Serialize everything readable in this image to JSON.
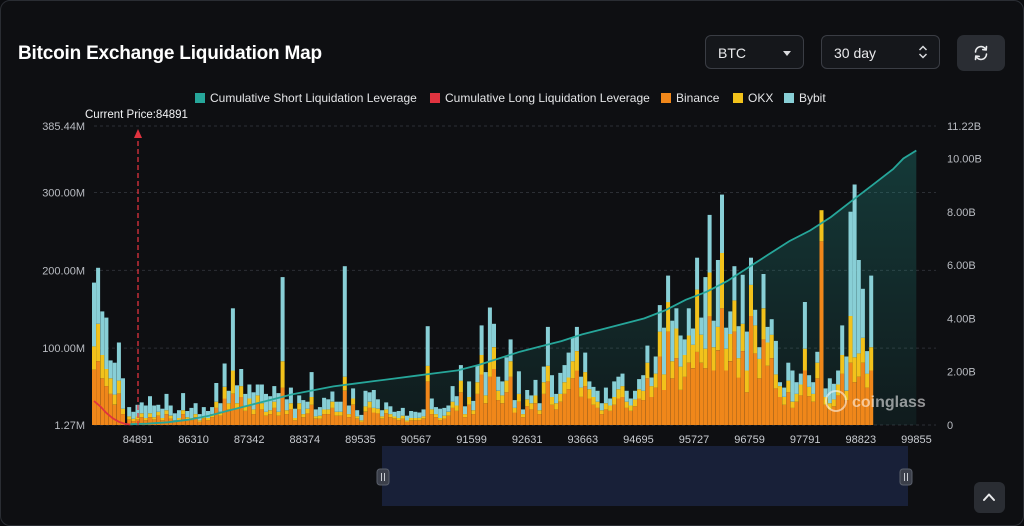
{
  "title": "Bitcoin Exchange Liquidation Map",
  "controls": {
    "coin": "BTC",
    "period": "30 day",
    "refresh_icon": "refresh-icon",
    "scroll_top_icon": "chevron-up-icon"
  },
  "watermark": "coinglass",
  "colors": {
    "short_cum": "#26a69a",
    "long_cum": "#e0333f",
    "binance": "#f0871a",
    "okx": "#f2c21b",
    "bybit": "#88cfd6",
    "current_price": "#e0333f"
  },
  "chart_data": {
    "type": "bar",
    "title": "Bitcoin Exchange Liquidation Map",
    "stacked": true,
    "legend_position": "top-center",
    "current_price": {
      "label": "Current Price:84891",
      "value": 84891
    },
    "x_tick_labels": [
      "84891",
      "86310",
      "87342",
      "88374",
      "89535",
      "90567",
      "91599",
      "92631",
      "93663",
      "94695",
      "95727",
      "96759",
      "97791",
      "98823",
      "99855"
    ],
    "y_left_ticks": [
      "1.27M",
      "100.00M",
      "200.00M",
      "300.00M",
      "385.44M"
    ],
    "y_right_ticks": [
      "0",
      "2.00B",
      "4.00B",
      "6.00B",
      "8.00B",
      "10.00B",
      "11.22B"
    ],
    "ylim_left": [
      1.27,
      385.44
    ],
    "ylim_right": [
      0,
      11.22
    ],
    "y_left_unit": "M",
    "y_right_unit": "B",
    "x_range": [
      84180,
      100430
    ],
    "legend": [
      "Cumulative Short Liquidation Leverage",
      "Cumulative Long Liquidation Leverage",
      "Binance",
      "OKX",
      "Bybit"
    ],
    "bar_series": [
      {
        "name": "Binance",
        "color": "#f0871a"
      },
      {
        "name": "OKX",
        "color": "#f2c21b"
      },
      {
        "name": "Bybit",
        "color": "#88cfd6"
      }
    ],
    "bars": [
      [
        84180,
        71,
        30,
        82
      ],
      [
        84260,
        82,
        48,
        72
      ],
      [
        84340,
        60,
        30,
        56
      ],
      [
        84420,
        50,
        22,
        66
      ],
      [
        84500,
        40,
        20,
        23
      ],
      [
        84580,
        26,
        13,
        41
      ],
      [
        84660,
        40,
        17,
        49
      ],
      [
        84740,
        14,
        7,
        39
      ],
      [
        84860,
        7,
        4,
        12
      ],
      [
        84940,
        5,
        3,
        9
      ],
      [
        85020,
        7,
        4,
        15
      ],
      [
        85100,
        10,
        5,
        14
      ],
      [
        85180,
        6,
        3,
        16
      ],
      [
        85260,
        10,
        5,
        22
      ],
      [
        85340,
        7,
        3,
        15
      ],
      [
        85420,
        12,
        5,
        9
      ],
      [
        85500,
        6,
        3,
        12
      ],
      [
        85580,
        14,
        5,
        21
      ],
      [
        85660,
        8,
        4,
        13
      ],
      [
        85740,
        4,
        2,
        9
      ],
      [
        85820,
        6,
        3,
        10
      ],
      [
        85900,
        14,
        5,
        22
      ],
      [
        85980,
        7,
        3,
        8
      ],
      [
        86060,
        6,
        3,
        13
      ],
      [
        86140,
        10,
        4,
        14
      ],
      [
        86220,
        4,
        2,
        8
      ],
      [
        86300,
        8,
        3,
        12
      ],
      [
        86380,
        6,
        3,
        9
      ],
      [
        86460,
        10,
        4,
        9
      ],
      [
        86540,
        22,
        8,
        24
      ],
      [
        86620,
        12,
        5,
        11
      ],
      [
        86700,
        34,
        15,
        30
      ],
      [
        86780,
        20,
        8,
        16
      ],
      [
        86860,
        40,
        30,
        80
      ],
      [
        86940,
        20,
        8,
        23
      ],
      [
        87020,
        36,
        14,
        22
      ],
      [
        87100,
        18,
        7,
        15
      ],
      [
        87180,
        24,
        10,
        18
      ],
      [
        87260,
        14,
        6,
        22
      ],
      [
        87340,
        28,
        10,
        14
      ],
      [
        87420,
        20,
        8,
        24
      ],
      [
        87500,
        12,
        5,
        23
      ],
      [
        87580,
        14,
        5,
        18
      ],
      [
        87660,
        22,
        8,
        20
      ],
      [
        87740,
        12,
        5,
        24
      ],
      [
        87820,
        48,
        34,
        108
      ],
      [
        87900,
        14,
        5,
        14
      ],
      [
        87980,
        20,
        8,
        20
      ],
      [
        88060,
        6,
        3,
        12
      ],
      [
        88140,
        20,
        8,
        10
      ],
      [
        88220,
        10,
        4,
        18
      ],
      [
        88300,
        15,
        6,
        9
      ],
      [
        88380,
        26,
        10,
        32
      ],
      [
        88460,
        8,
        3,
        9
      ],
      [
        88540,
        8,
        4,
        11
      ],
      [
        88620,
        14,
        6,
        15
      ],
      [
        88700,
        14,
        6,
        13
      ],
      [
        88780,
        22,
        8,
        13
      ],
      [
        88860,
        12,
        5,
        13
      ],
      [
        88940,
        12,
        5,
        13
      ],
      [
        89020,
        44,
        18,
        142
      ],
      [
        89100,
        10,
        4,
        11
      ],
      [
        89180,
        26,
        8,
        13
      ],
      [
        89260,
        8,
        3,
        8
      ],
      [
        89340,
        4,
        2,
        7
      ],
      [
        89420,
        17,
        7,
        20
      ],
      [
        89500,
        22,
        8,
        12
      ],
      [
        89580,
        16,
        6,
        23
      ],
      [
        89660,
        15,
        6,
        12
      ],
      [
        89740,
        8,
        3,
        8
      ],
      [
        89820,
        15,
        5,
        9
      ],
      [
        89900,
        10,
        4,
        10
      ],
      [
        89980,
        8,
        3,
        6
      ],
      [
        90060,
        6,
        3,
        9
      ],
      [
        90140,
        8,
        4,
        10
      ],
      [
        90220,
        4,
        2,
        6
      ],
      [
        90300,
        6,
        3,
        9
      ],
      [
        90380,
        6,
        3,
        8
      ],
      [
        90460,
        6,
        3,
        7
      ],
      [
        90540,
        8,
        3,
        9
      ],
      [
        90620,
        56,
        20,
        51
      ],
      [
        90700,
        14,
        6,
        14
      ],
      [
        90780,
        10,
        4,
        9
      ],
      [
        90860,
        6,
        3,
        12
      ],
      [
        90940,
        8,
        4,
        10
      ],
      [
        91020,
        12,
        5,
        8
      ],
      [
        91100,
        22,
        8,
        20
      ],
      [
        91180,
        18,
        7,
        12
      ],
      [
        91260,
        42,
        15,
        20
      ],
      [
        91340,
        10,
        4,
        10
      ],
      [
        91420,
        26,
        10,
        20
      ],
      [
        91500,
        14,
        5,
        12
      ],
      [
        91580,
        40,
        15,
        22
      ],
      [
        91660,
        65,
        25,
        38
      ],
      [
        91740,
        28,
        10,
        30
      ],
      [
        91820,
        62,
        20,
        69
      ],
      [
        91900,
        72,
        28,
        30
      ],
      [
        91980,
        32,
        12,
        18
      ],
      [
        92060,
        28,
        10,
        18
      ],
      [
        92140,
        42,
        15,
        30
      ],
      [
        92220,
        62,
        20,
        28
      ],
      [
        92300,
        16,
        6,
        10
      ],
      [
        92380,
        30,
        10,
        29
      ],
      [
        92460,
        10,
        4,
        6
      ],
      [
        92540,
        24,
        9,
        12
      ],
      [
        92620,
        20,
        8,
        10
      ],
      [
        92700,
        28,
        10,
        20
      ],
      [
        92780,
        14,
        5,
        9
      ],
      [
        92860,
        40,
        15,
        20
      ],
      [
        92940,
        56,
        20,
        50
      ],
      [
        93020,
        26,
        10,
        28
      ],
      [
        93100,
        20,
        8,
        12
      ],
      [
        93180,
        30,
        10,
        27
      ],
      [
        93260,
        40,
        15,
        22
      ],
      [
        93340,
        46,
        15,
        32
      ],
      [
        93420,
        60,
        22,
        31
      ],
      [
        93500,
        70,
        25,
        31
      ],
      [
        93580,
        36,
        12,
        14
      ],
      [
        93660,
        50,
        18,
        25
      ],
      [
        93740,
        34,
        12,
        10
      ],
      [
        93820,
        26,
        10,
        13
      ],
      [
        93900,
        22,
        8,
        14
      ],
      [
        93980,
        14,
        5,
        9
      ],
      [
        94060,
        20,
        8,
        20
      ],
      [
        94140,
        18,
        7,
        9
      ],
      [
        94220,
        26,
        10,
        20
      ],
      [
        94300,
        34,
        12,
        16
      ],
      [
        94380,
        36,
        14,
        16
      ],
      [
        94460,
        22,
        8,
        14
      ],
      [
        94540,
        18,
        7,
        9
      ],
      [
        94620,
        24,
        9,
        11
      ],
      [
        94700,
        34,
        12,
        13
      ],
      [
        94780,
        32,
        12,
        20
      ],
      [
        94860,
        60,
        20,
        22
      ],
      [
        94940,
        36,
        14,
        11
      ],
      [
        95020,
        48,
        18,
        22
      ],
      [
        95100,
        88,
        32,
        34
      ],
      [
        95180,
        45,
        20,
        60
      ],
      [
        95260,
        120,
        38,
        34
      ],
      [
        95340,
        60,
        22,
        52
      ],
      [
        95420,
        86,
        38,
        26
      ],
      [
        95500,
        45,
        30,
        40
      ],
      [
        95580,
        62,
        28,
        20
      ],
      [
        95660,
        80,
        35,
        35
      ],
      [
        95740,
        73,
        30,
        21
      ],
      [
        95820,
        94,
        80,
        41
      ],
      [
        95900,
        80,
        36,
        22
      ],
      [
        95980,
        73,
        25,
        92
      ],
      [
        96060,
        140,
        56,
        74
      ],
      [
        96140,
        70,
        30,
        34
      ],
      [
        96220,
        96,
        30,
        86
      ],
      [
        96300,
        150,
        71,
        75
      ],
      [
        96380,
        70,
        28,
        27
      ],
      [
        96460,
        82,
        35,
        29
      ],
      [
        96540,
        120,
        40,
        44
      ],
      [
        96620,
        61,
        25,
        41
      ],
      [
        96700,
        95,
        35,
        63
      ],
      [
        96780,
        42,
        28,
        50
      ],
      [
        96860,
        140,
        40,
        35
      ],
      [
        96940,
        92,
        36,
        20
      ],
      [
        97020,
        60,
        25,
        15
      ],
      [
        97100,
        110,
        40,
        44
      ],
      [
        97180,
        76,
        30,
        20
      ],
      [
        97260,
        86,
        30,
        20
      ],
      [
        97340,
        47,
        18,
        43
      ],
      [
        97420,
        36,
        14,
        5
      ],
      [
        97500,
        26,
        10,
        12
      ],
      [
        97580,
        42,
        15,
        23
      ],
      [
        97660,
        22,
        8,
        40
      ],
      [
        97740,
        30,
        10,
        15
      ],
      [
        97820,
        38,
        14,
        14
      ],
      [
        97900,
        70,
        28,
        60
      ],
      [
        97980,
        37,
        12,
        15
      ],
      [
        98060,
        30,
        10,
        15
      ],
      [
        98140,
        60,
        20,
        14
      ],
      [
        98220,
        236,
        40,
        0
      ],
      [
        98300,
        26,
        10,
        11
      ],
      [
        98380,
        20,
        8,
        32
      ],
      [
        98460,
        24,
        9,
        20
      ],
      [
        98540,
        38,
        14,
        18
      ],
      [
        98620,
        66,
        24,
        38
      ],
      [
        98700,
        32,
        12,
        44
      ],
      [
        98780,
        80,
        60,
        134
      ],
      [
        98860,
        55,
        32,
        222
      ],
      [
        98940,
        62,
        30,
        120
      ],
      [
        99020,
        80,
        32,
        63
      ],
      [
        99100,
        48,
        18,
        29
      ],
      [
        99180,
        70,
        30,
        92
      ]
    ],
    "cumulative_short": [
      [
        84880,
        0.03
      ],
      [
        85200,
        0.05
      ],
      [
        85600,
        0.1
      ],
      [
        86000,
        0.2
      ],
      [
        86400,
        0.35
      ],
      [
        86800,
        0.55
      ],
      [
        87200,
        0.75
      ],
      [
        87600,
        0.95
      ],
      [
        88000,
        1.15
      ],
      [
        88400,
        1.3
      ],
      [
        88800,
        1.45
      ],
      [
        89200,
        1.55
      ],
      [
        89600,
        1.65
      ],
      [
        90000,
        1.75
      ],
      [
        90400,
        1.85
      ],
      [
        90800,
        1.95
      ],
      [
        91200,
        2.05
      ],
      [
        91600,
        2.25
      ],
      [
        92000,
        2.5
      ],
      [
        92400,
        2.75
      ],
      [
        92800,
        2.95
      ],
      [
        93200,
        3.15
      ],
      [
        93600,
        3.4
      ],
      [
        94000,
        3.6
      ],
      [
        94400,
        3.8
      ],
      [
        94800,
        4.0
      ],
      [
        95200,
        4.3
      ],
      [
        95600,
        4.7
      ],
      [
        96000,
        5.0
      ],
      [
        96400,
        5.4
      ],
      [
        96800,
        5.9
      ],
      [
        97200,
        6.4
      ],
      [
        97600,
        6.9
      ],
      [
        98000,
        7.3
      ],
      [
        98400,
        7.8
      ],
      [
        98800,
        8.4
      ],
      [
        99200,
        9.0
      ],
      [
        99600,
        9.6
      ],
      [
        99800,
        10.0
      ],
      [
        100050,
        10.3
      ]
    ],
    "cumulative_long": [
      [
        84180,
        0.9
      ],
      [
        84300,
        0.7
      ],
      [
        84420,
        0.45
      ],
      [
        84540,
        0.25
      ],
      [
        84660,
        0.12
      ],
      [
        84780,
        0.04
      ],
      [
        84880,
        0.02
      ]
    ]
  }
}
